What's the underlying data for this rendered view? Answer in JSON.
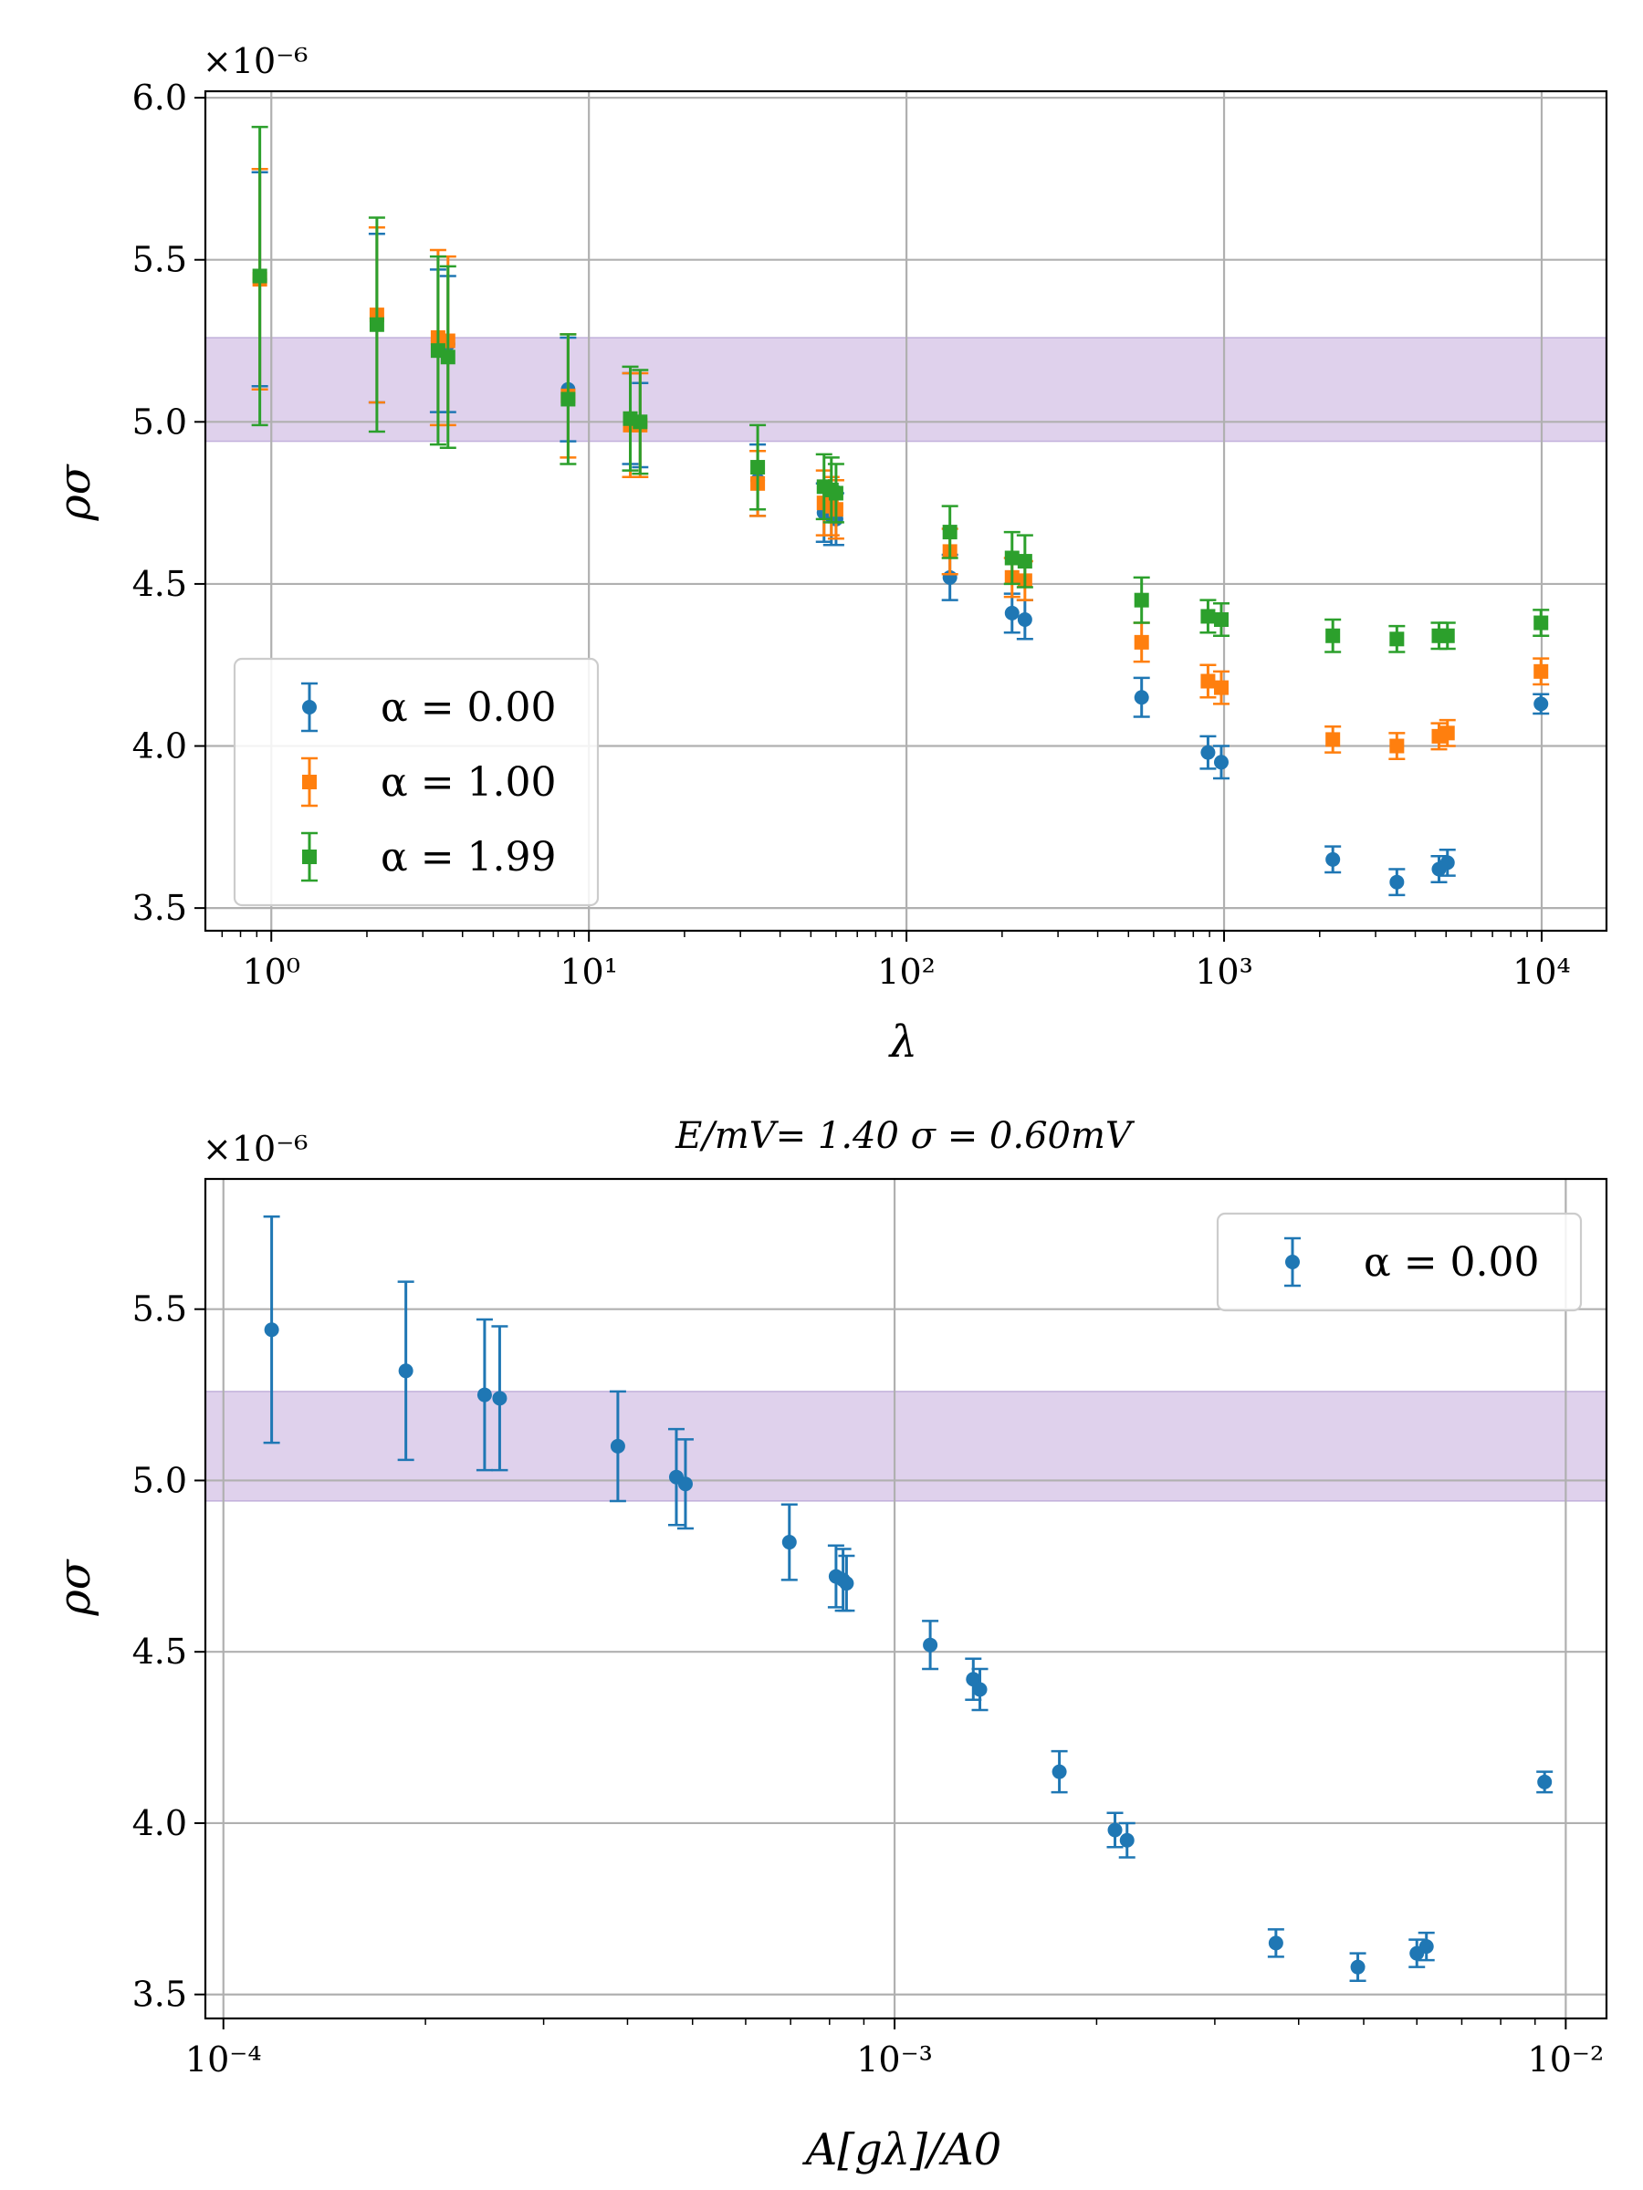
{
  "chart_data": [
    {
      "type": "scatter",
      "title": "",
      "offset_text": "×10⁻⁶",
      "xlabel": "λ",
      "ylabel": "ρσ",
      "xscale": "log",
      "xlim": [
        0.62,
        16000
      ],
      "ylim": [
        3.43,
        6.02
      ],
      "x_ticks": [
        1,
        10,
        100,
        1000,
        10000
      ],
      "x_tick_labels": [
        "10⁰",
        "10¹",
        "10²",
        "10³",
        "10⁴"
      ],
      "y_ticks": [
        3.5,
        4.0,
        4.5,
        5.0,
        5.5,
        6.0
      ],
      "y_tick_labels": [
        "3.5",
        "4.0",
        "4.5",
        "5.0",
        "5.5",
        "6.0"
      ],
      "grid": true,
      "legend_position": "lower-left",
      "band": {
        "low": 4.94,
        "mid": 5.0,
        "high": 5.26,
        "color": "#c9b3e0"
      },
      "series": [
        {
          "name": "α = 0.00",
          "color": "#1f77b4",
          "marker": "circle",
          "x": [
            0.92,
            2.15,
            3.35,
            3.6,
            8.6,
            13.5,
            14.5,
            34,
            55,
            58,
            60,
            137,
            215,
            236,
            550,
            890,
            980,
            2200,
            3500,
            4750,
            5050,
            9950
          ],
          "y": [
            5.44,
            5.32,
            5.25,
            5.24,
            5.1,
            5.01,
            4.99,
            4.82,
            4.72,
            4.71,
            4.7,
            4.52,
            4.41,
            4.39,
            4.15,
            3.98,
            3.95,
            3.65,
            3.58,
            3.62,
            3.64,
            4.13
          ],
          "err": [
            0.33,
            0.26,
            0.22,
            0.21,
            0.16,
            0.14,
            0.13,
            0.11,
            0.09,
            0.09,
            0.08,
            0.07,
            0.06,
            0.06,
            0.06,
            0.05,
            0.05,
            0.04,
            0.04,
            0.04,
            0.04,
            0.03
          ]
        },
        {
          "name": "α = 1.00",
          "color": "#ff7f0e",
          "marker": "square",
          "x": [
            0.92,
            2.15,
            3.35,
            3.6,
            8.6,
            13.5,
            14.5,
            34,
            55,
            58,
            60,
            137,
            215,
            236,
            550,
            890,
            980,
            2200,
            3500,
            4750,
            5050,
            9950
          ],
          "y": [
            5.44,
            5.33,
            5.26,
            5.25,
            5.08,
            4.99,
            4.99,
            4.81,
            4.75,
            4.74,
            4.73,
            4.6,
            4.52,
            4.51,
            4.32,
            4.2,
            4.18,
            4.02,
            4.0,
            4.03,
            4.04,
            4.23
          ],
          "err": [
            0.34,
            0.27,
            0.27,
            0.26,
            0.19,
            0.16,
            0.16,
            0.1,
            0.1,
            0.09,
            0.09,
            0.07,
            0.06,
            0.06,
            0.06,
            0.05,
            0.05,
            0.04,
            0.04,
            0.04,
            0.04,
            0.04
          ]
        },
        {
          "name": "α = 1.99",
          "color": "#2ca02c",
          "marker": "square",
          "x": [
            0.92,
            2.15,
            3.35,
            3.6,
            8.6,
            13.5,
            14.5,
            34,
            55,
            58,
            60,
            137,
            215,
            236,
            550,
            890,
            980,
            2200,
            3500,
            4750,
            5050,
            9950
          ],
          "y": [
            5.45,
            5.3,
            5.22,
            5.2,
            5.07,
            5.01,
            5.0,
            4.86,
            4.8,
            4.79,
            4.78,
            4.66,
            4.58,
            4.57,
            4.45,
            4.4,
            4.39,
            4.34,
            4.33,
            4.34,
            4.34,
            4.38
          ],
          "err": [
            0.46,
            0.33,
            0.29,
            0.28,
            0.2,
            0.16,
            0.16,
            0.13,
            0.1,
            0.1,
            0.09,
            0.08,
            0.08,
            0.08,
            0.07,
            0.05,
            0.05,
            0.05,
            0.04,
            0.04,
            0.04,
            0.04
          ]
        }
      ]
    },
    {
      "type": "scatter",
      "title": "E/mV= 1.40 σ = 0.60mV",
      "offset_text": "×10⁻⁶",
      "xlabel": "A[gλ]/A0",
      "ylabel": "ρσ",
      "xscale": "log",
      "xlim": [
        9.4e-05,
        0.0115
      ],
      "ylim": [
        3.43,
        5.88
      ],
      "x_ticks": [
        0.0001,
        0.001,
        0.01
      ],
      "x_tick_labels": [
        "10⁻⁴",
        "10⁻³",
        "10⁻²"
      ],
      "y_ticks": [
        3.5,
        4.0,
        4.5,
        5.0,
        5.5
      ],
      "y_tick_labels": [
        "3.5",
        "4.0",
        "4.5",
        "5.0",
        "5.5"
      ],
      "grid": true,
      "legend_position": "upper-right",
      "band": {
        "low": 4.94,
        "mid": 5.0,
        "high": 5.26,
        "color": "#c9b3e0"
      },
      "series": [
        {
          "name": "α = 0.00",
          "color": "#1f77b4",
          "marker": "circle",
          "x": [
            0.000118,
            0.000187,
            0.000245,
            0.000258,
            0.000387,
            0.000473,
            0.000488,
            0.000697,
            0.000818,
            0.000838,
            0.000848,
            0.00113,
            0.00131,
            0.00134,
            0.00176,
            0.00213,
            0.00222,
            0.0037,
            0.0049,
            0.006,
            0.0062,
            0.0093
          ],
          "y": [
            5.44,
            5.32,
            5.25,
            5.24,
            5.1,
            5.01,
            4.99,
            4.82,
            4.72,
            4.71,
            4.7,
            4.52,
            4.42,
            4.39,
            4.15,
            3.98,
            3.95,
            3.65,
            3.58,
            3.62,
            3.64,
            4.12
          ],
          "err": [
            0.33,
            0.26,
            0.22,
            0.21,
            0.16,
            0.14,
            0.13,
            0.11,
            0.09,
            0.09,
            0.08,
            0.07,
            0.06,
            0.06,
            0.06,
            0.05,
            0.05,
            0.04,
            0.04,
            0.04,
            0.04,
            0.03
          ]
        }
      ]
    }
  ]
}
